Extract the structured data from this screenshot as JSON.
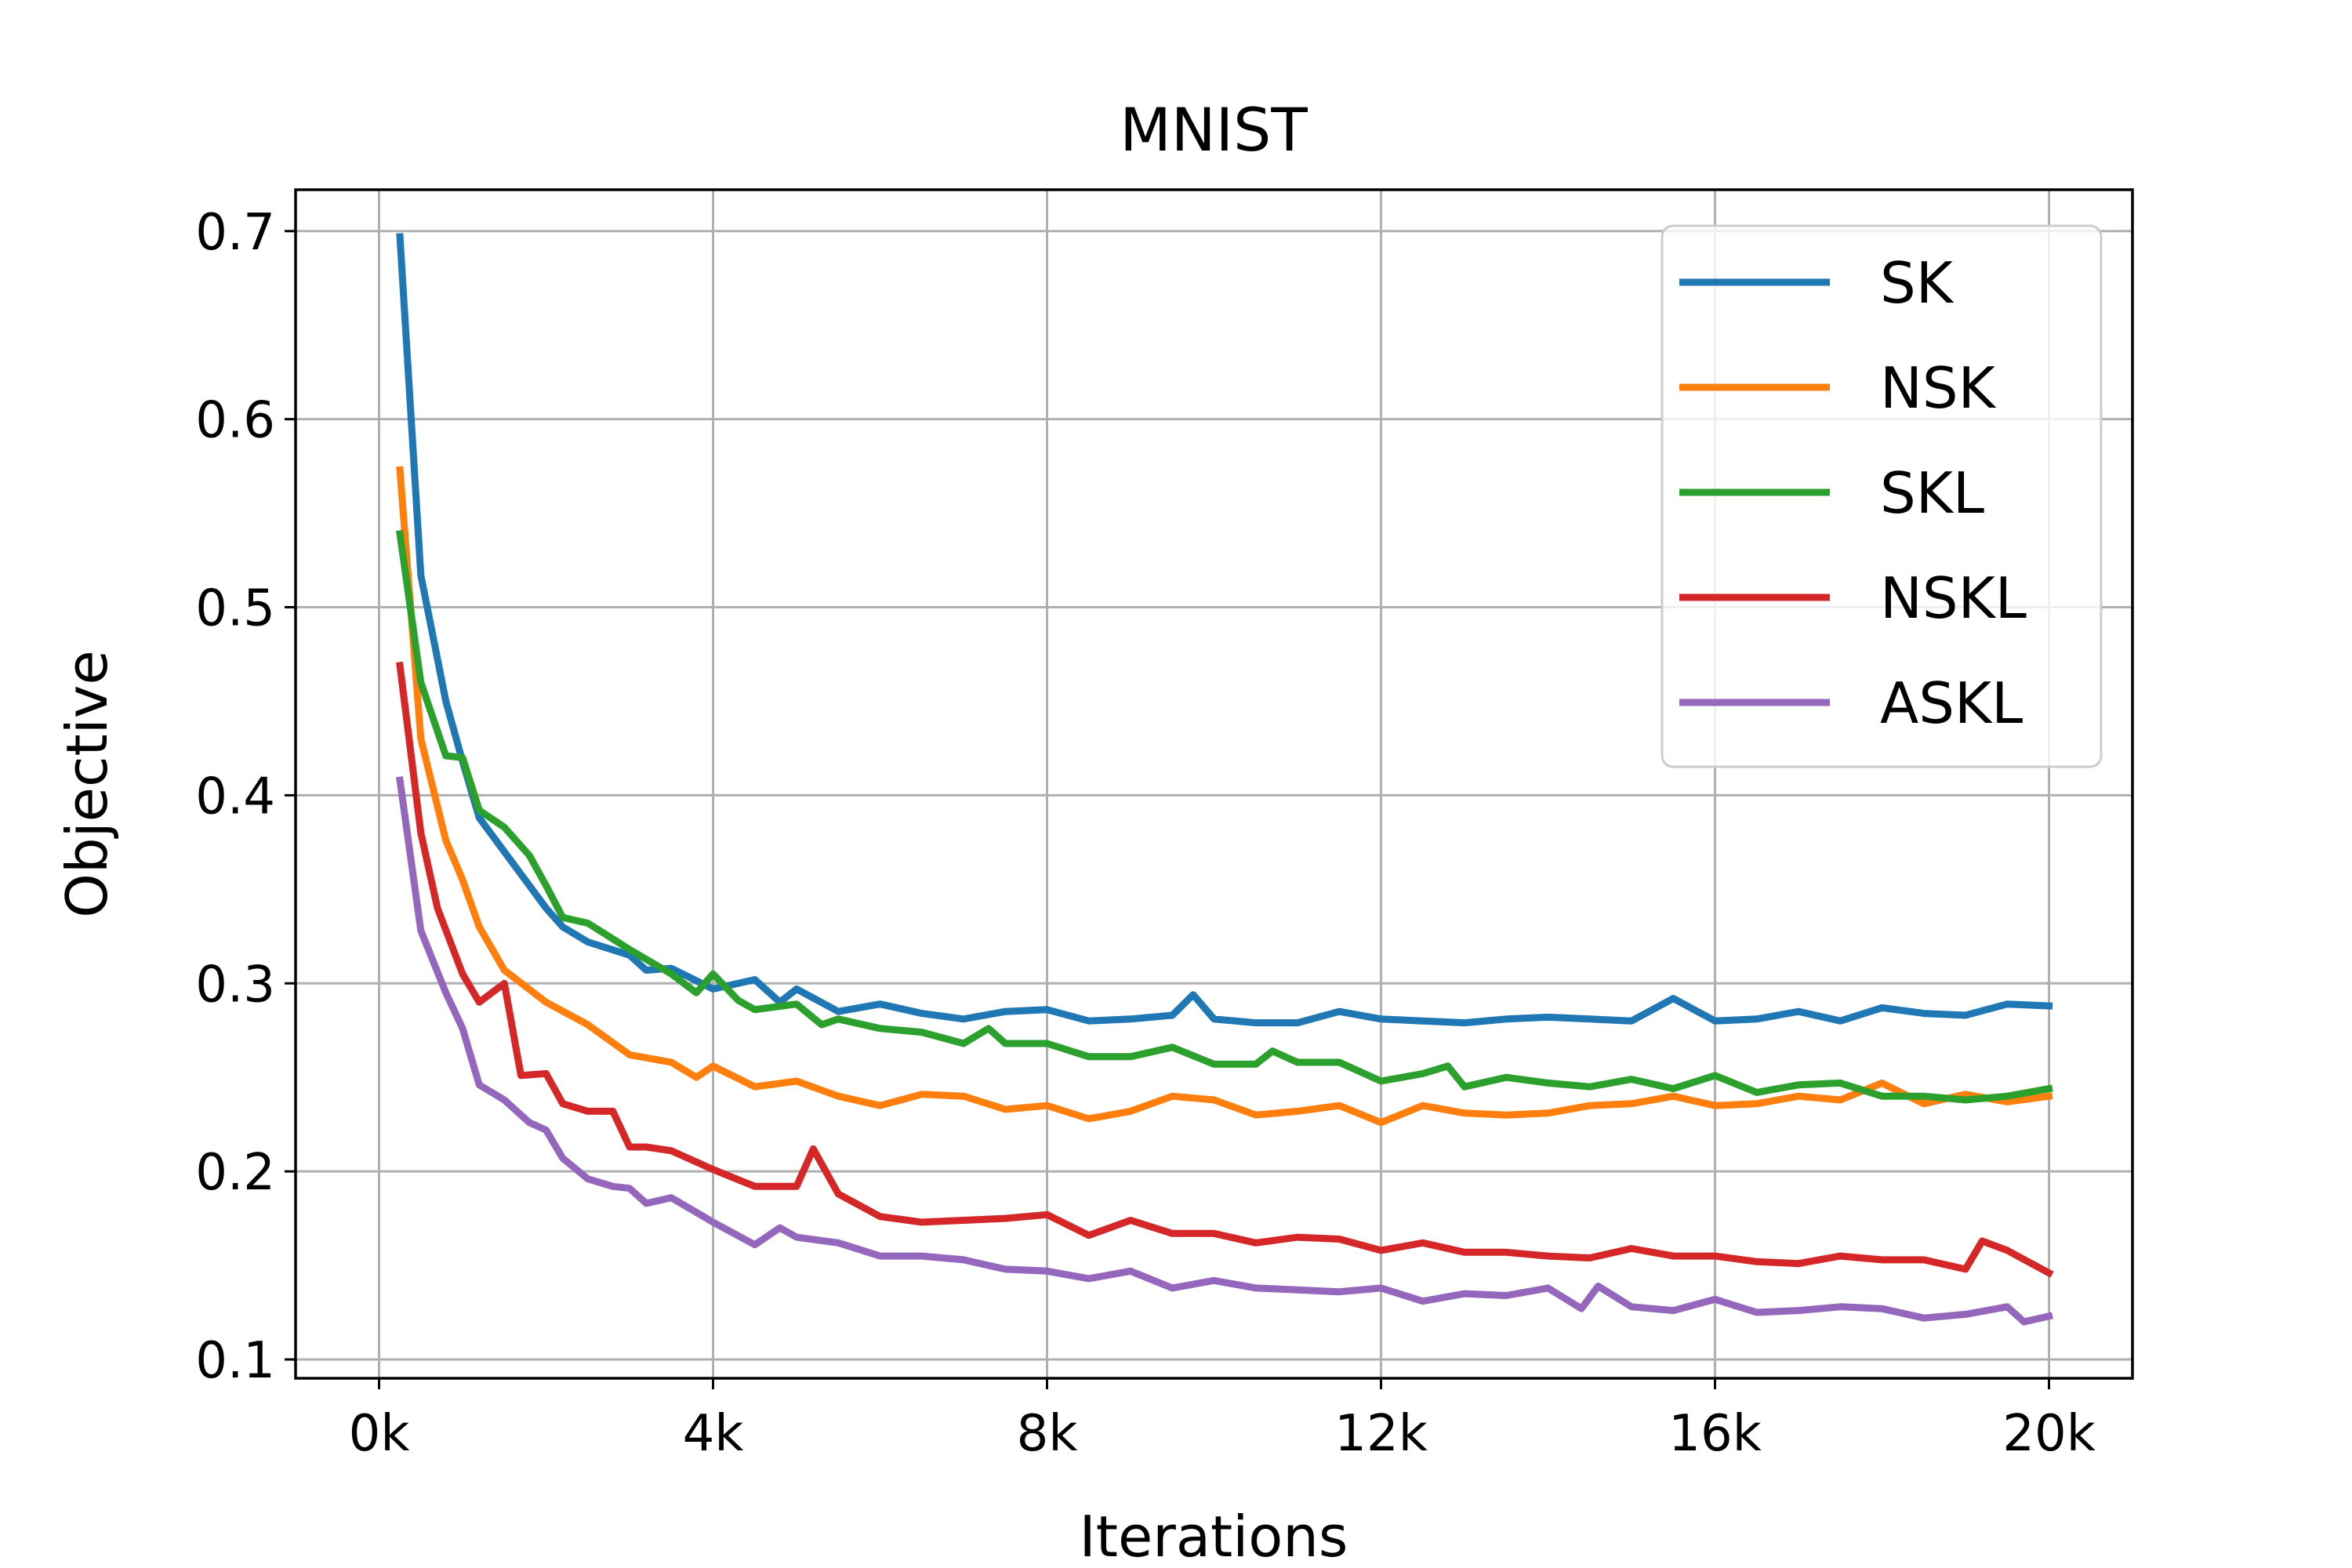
{
  "chart_data": {
    "type": "line",
    "title": "MNIST",
    "xlabel": "Iterations",
    "ylabel": "Objective",
    "xlim": [
      -1000,
      21000
    ],
    "ylim": [
      0.09,
      0.722
    ],
    "grid": true,
    "legend_position": "top-right",
    "x_ticks": [
      {
        "value": 0,
        "label": "0k"
      },
      {
        "value": 4000,
        "label": "4k"
      },
      {
        "value": 8000,
        "label": "8k"
      },
      {
        "value": 12000,
        "label": "12k"
      },
      {
        "value": 16000,
        "label": "16k"
      },
      {
        "value": 20000,
        "label": "20k"
      }
    ],
    "y_ticks": [
      {
        "value": 0.1,
        "label": "0.1"
      },
      {
        "value": 0.2,
        "label": "0.2"
      },
      {
        "value": 0.3,
        "label": "0.3"
      },
      {
        "value": 0.4,
        "label": "0.4"
      },
      {
        "value": 0.5,
        "label": "0.5"
      },
      {
        "value": 0.6,
        "label": "0.6"
      },
      {
        "value": 0.7,
        "label": "0.7"
      }
    ],
    "series": [
      {
        "name": "SK",
        "color": "#1f77b4",
        "x": [
          250,
          500,
          800,
          1000,
          1200,
          1500,
          1800,
          2000,
          2200,
          2500,
          3000,
          3200,
          3500,
          4000,
          4500,
          4800,
          5000,
          5500,
          6000,
          6500,
          7000,
          7500,
          8000,
          8500,
          9000,
          9500,
          9750,
          10000,
          10500,
          11000,
          11500,
          12000,
          12500,
          13000,
          13500,
          14000,
          14500,
          15000,
          15500,
          16000,
          16500,
          17000,
          17500,
          18000,
          18500,
          19000,
          19500,
          20000
        ],
        "values": [
          0.697,
          0.517,
          0.45,
          0.418,
          0.388,
          0.37,
          0.352,
          0.34,
          0.33,
          0.322,
          0.315,
          0.307,
          0.308,
          0.297,
          0.302,
          0.29,
          0.297,
          0.285,
          0.289,
          0.284,
          0.281,
          0.285,
          0.286,
          0.28,
          0.281,
          0.283,
          0.294,
          0.281,
          0.279,
          0.279,
          0.285,
          0.281,
          0.28,
          0.279,
          0.281,
          0.282,
          0.281,
          0.28,
          0.292,
          0.28,
          0.281,
          0.285,
          0.28,
          0.287,
          0.284,
          0.283,
          0.289,
          0.288
        ]
      },
      {
        "name": "NSK",
        "color": "#ff7f0e",
        "x": [
          250,
          500,
          800,
          1000,
          1200,
          1500,
          2000,
          2500,
          3000,
          3500,
          3800,
          4000,
          4500,
          5000,
          5500,
          6000,
          6500,
          7000,
          7500,
          8000,
          8500,
          9000,
          9500,
          10000,
          10500,
          11000,
          11500,
          12000,
          12500,
          13000,
          13500,
          14000,
          14500,
          15000,
          15500,
          16000,
          16500,
          17000,
          17500,
          18000,
          18500,
          19000,
          19500,
          20000
        ],
        "values": [
          0.573,
          0.43,
          0.376,
          0.355,
          0.33,
          0.307,
          0.29,
          0.278,
          0.262,
          0.258,
          0.25,
          0.256,
          0.245,
          0.248,
          0.24,
          0.235,
          0.241,
          0.24,
          0.233,
          0.235,
          0.228,
          0.232,
          0.24,
          0.238,
          0.23,
          0.232,
          0.235,
          0.226,
          0.235,
          0.231,
          0.23,
          0.231,
          0.235,
          0.236,
          0.24,
          0.235,
          0.236,
          0.24,
          0.238,
          0.247,
          0.236,
          0.241,
          0.237,
          0.24
        ]
      },
      {
        "name": "SKL",
        "color": "#2ca02c",
        "x": [
          250,
          500,
          800,
          1000,
          1200,
          1500,
          1800,
          2000,
          2200,
          2500,
          3000,
          3500,
          3800,
          4000,
          4300,
          4500,
          5000,
          5300,
          5500,
          6000,
          6500,
          7000,
          7300,
          7500,
          8000,
          8500,
          9000,
          9500,
          10000,
          10500,
          10700,
          11000,
          11500,
          12000,
          12500,
          12800,
          13000,
          13500,
          14000,
          14500,
          15000,
          15500,
          16000,
          16500,
          17000,
          17500,
          18000,
          18500,
          19000,
          19500,
          20000
        ],
        "values": [
          0.539,
          0.46,
          0.421,
          0.42,
          0.392,
          0.383,
          0.368,
          0.352,
          0.335,
          0.332,
          0.318,
          0.305,
          0.295,
          0.305,
          0.291,
          0.286,
          0.289,
          0.278,
          0.281,
          0.276,
          0.274,
          0.268,
          0.276,
          0.268,
          0.268,
          0.261,
          0.261,
          0.266,
          0.257,
          0.257,
          0.264,
          0.258,
          0.258,
          0.248,
          0.252,
          0.256,
          0.245,
          0.25,
          0.247,
          0.245,
          0.249,
          0.244,
          0.251,
          0.242,
          0.246,
          0.247,
          0.24,
          0.24,
          0.238,
          0.24,
          0.244
        ]
      },
      {
        "name": "NSKL",
        "color": "#d62728",
        "x": [
          250,
          500,
          700,
          1000,
          1200,
          1500,
          1700,
          2000,
          2200,
          2500,
          2800,
          3000,
          3200,
          3500,
          4000,
          4500,
          5000,
          5200,
          5500,
          6000,
          6500,
          7000,
          7500,
          8000,
          8500,
          9000,
          9500,
          10000,
          10500,
          11000,
          11500,
          12000,
          12500,
          13000,
          13500,
          14000,
          14500,
          15000,
          15500,
          16000,
          16500,
          17000,
          17500,
          18000,
          18500,
          19000,
          19200,
          19500,
          20000
        ],
        "values": [
          0.469,
          0.38,
          0.34,
          0.305,
          0.29,
          0.3,
          0.251,
          0.252,
          0.236,
          0.232,
          0.232,
          0.213,
          0.213,
          0.211,
          0.201,
          0.192,
          0.192,
          0.212,
          0.188,
          0.176,
          0.173,
          0.174,
          0.175,
          0.177,
          0.166,
          0.174,
          0.167,
          0.167,
          0.162,
          0.165,
          0.164,
          0.158,
          0.162,
          0.157,
          0.157,
          0.155,
          0.154,
          0.159,
          0.155,
          0.155,
          0.152,
          0.151,
          0.155,
          0.153,
          0.153,
          0.148,
          0.163,
          0.158,
          0.146
        ]
      },
      {
        "name": "ASKL",
        "color": "#9467bd",
        "x": [
          250,
          500,
          800,
          1000,
          1200,
          1500,
          1800,
          2000,
          2200,
          2500,
          2800,
          3000,
          3200,
          3500,
          4000,
          4500,
          4800,
          5000,
          5500,
          6000,
          6500,
          7000,
          7500,
          8000,
          8500,
          9000,
          9500,
          10000,
          10500,
          11000,
          11500,
          12000,
          12500,
          13000,
          13500,
          14000,
          14400,
          14600,
          15000,
          15500,
          16000,
          16500,
          17000,
          17500,
          18000,
          18500,
          19000,
          19500,
          19700,
          20000
        ],
        "values": [
          0.408,
          0.328,
          0.295,
          0.276,
          0.246,
          0.238,
          0.226,
          0.222,
          0.207,
          0.196,
          0.192,
          0.191,
          0.183,
          0.186,
          0.173,
          0.161,
          0.17,
          0.165,
          0.162,
          0.155,
          0.155,
          0.153,
          0.148,
          0.147,
          0.143,
          0.147,
          0.138,
          0.142,
          0.138,
          0.137,
          0.136,
          0.138,
          0.131,
          0.135,
          0.134,
          0.138,
          0.127,
          0.139,
          0.128,
          0.126,
          0.132,
          0.125,
          0.126,
          0.128,
          0.127,
          0.122,
          0.124,
          0.128,
          0.12,
          0.123
        ]
      }
    ]
  }
}
